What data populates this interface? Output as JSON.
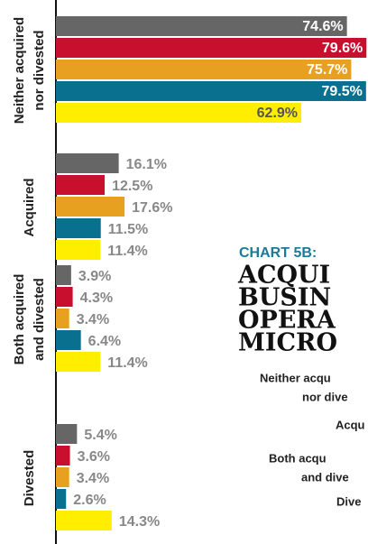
{
  "chart_data": {
    "type": "bar",
    "orientation": "horizontal",
    "categories": [
      [
        "Neither acquired",
        "nor divested"
      ],
      [
        "Acquired"
      ],
      [
        "Both acquired",
        "and divested"
      ],
      [
        "Divested"
      ]
    ],
    "xlim": [
      0,
      80
    ],
    "series": [
      {
        "color": "#666666",
        "values": [
          74.6,
          16.1,
          3.9,
          5.4
        ],
        "value_labels": [
          "74.6%",
          "16.1%",
          "3.9%",
          "5.4%"
        ]
      },
      {
        "color": "#c8102e",
        "values": [
          79.6,
          12.5,
          4.3,
          3.6
        ],
        "value_labels": [
          "79.6%",
          "12.5%",
          "4.3%",
          "3.6%"
        ]
      },
      {
        "color": "#e8a020",
        "values": [
          75.7,
          17.6,
          3.4,
          3.4
        ],
        "value_labels": [
          "75.7%",
          "17.6%",
          "3.4%",
          "3.4%"
        ]
      },
      {
        "color": "#0a7090",
        "values": [
          79.5,
          11.5,
          6.4,
          2.6
        ],
        "value_labels": [
          "79.5%",
          "11.5%",
          "6.4%",
          "2.6%"
        ]
      },
      {
        "color": "#ffee00",
        "values": [
          62.9,
          11.4,
          11.4,
          14.3
        ],
        "value_labels": [
          "62.9%",
          "11.4%",
          "11.4%",
          "14.3%"
        ]
      }
    ]
  },
  "panel": {
    "kicker": "CHART 5B:",
    "title": [
      "ACQUI",
      "BUSIN",
      "OPERA",
      "MICRO"
    ],
    "legend": [
      "Neither acqu",
      "nor dive",
      "Acqu",
      "Both acqu",
      "and dive",
      "Dive"
    ]
  }
}
